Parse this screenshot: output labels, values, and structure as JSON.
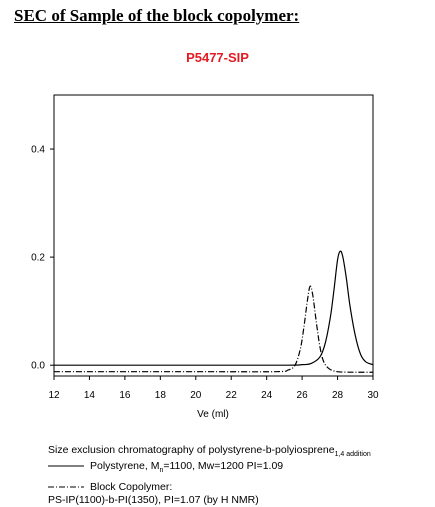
{
  "heading": "SEC of Sample of the block copolymer:",
  "sample_id": "P5477-SIP",
  "caption": {
    "text": "Size exclusion chromatography of polystyrene-b-polyiosprene",
    "subscript": "1,4 addition"
  },
  "legend": [
    {
      "style": "solid",
      "pre": "Polystyrene, M",
      "sub": "n",
      "post": "=1100, Mw=1200  PI=1.09"
    },
    {
      "style": "dash-dot",
      "line1": "Block Copolymer:",
      "line2": "PS-IP(1100)-b-PI(1350),  PI=1.07 (by H NMR)"
    }
  ],
  "chart_data": {
    "type": "line",
    "xlabel": "Ve (ml)",
    "ylabel": "",
    "xlim": [
      12,
      30
    ],
    "ylim": [
      -0.02,
      0.5
    ],
    "x_ticks": [
      12,
      14,
      16,
      18,
      20,
      22,
      24,
      26,
      28,
      30
    ],
    "x_tick_labels": [
      "12",
      "14",
      "16",
      "18",
      "20",
      "22",
      "24",
      "26",
      "28",
      "30"
    ],
    "y_ticks": [
      0.0,
      0.2,
      0.4
    ],
    "y_tick_labels": [
      "0.0",
      "0.2",
      "0.4"
    ],
    "grid": false,
    "series": [
      {
        "style": "solid",
        "color": "#000000",
        "x": [
          12,
          20,
          25,
          26,
          26.5,
          27,
          27.3,
          27.6,
          27.8,
          28.0,
          28.15,
          28.3,
          28.5,
          28.7,
          29.0,
          29.3,
          29.6,
          30
        ],
        "y": [
          0.0,
          0.0,
          0.0,
          0.001,
          0.003,
          0.015,
          0.04,
          0.09,
          0.14,
          0.195,
          0.211,
          0.2,
          0.16,
          0.11,
          0.055,
          0.02,
          0.006,
          0.001
        ]
      },
      {
        "style": "dash-dot",
        "color": "#000000",
        "x": [
          12,
          20,
          24.5,
          25.2,
          25.6,
          25.9,
          26.1,
          26.3,
          26.45,
          26.6,
          26.8,
          27.0,
          27.2,
          27.5,
          28,
          29,
          30
        ],
        "y": [
          -0.012,
          -0.012,
          -0.012,
          -0.009,
          0.0,
          0.03,
          0.07,
          0.12,
          0.146,
          0.13,
          0.08,
          0.035,
          0.008,
          -0.006,
          -0.012,
          -0.013,
          -0.013
        ]
      }
    ]
  }
}
